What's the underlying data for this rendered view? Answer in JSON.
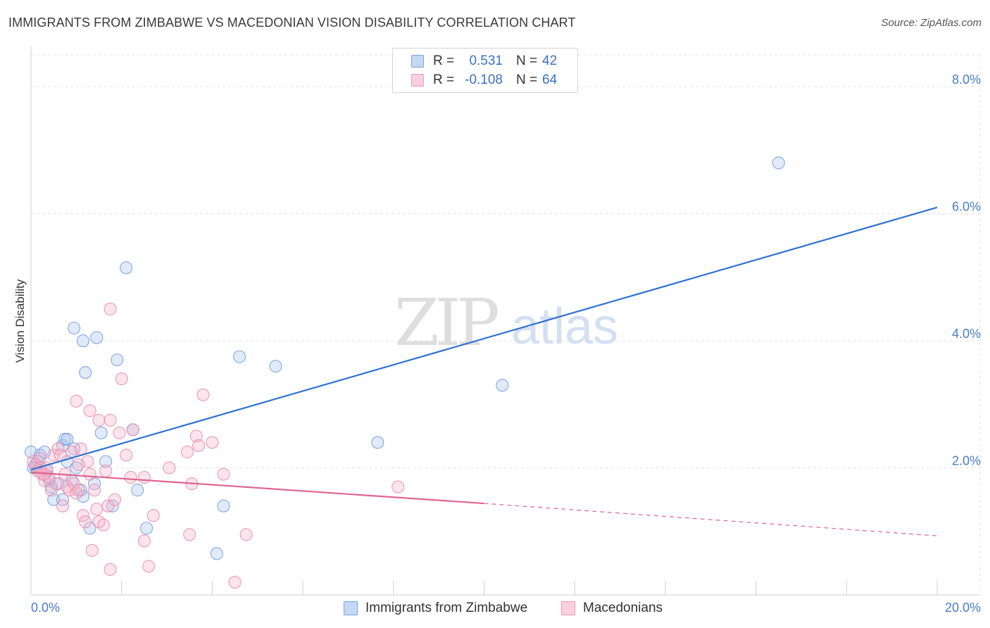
{
  "header": {
    "title": "IMMIGRANTS FROM ZIMBABWE VS MACEDONIAN VISION DISABILITY CORRELATION CHART",
    "source": "Source: ZipAtlas.com"
  },
  "watermark": {
    "zip": "ZIP",
    "atlas": "atlas"
  },
  "legend": {
    "rows": [
      {
        "r_label": "R =",
        "r_value": "0.531",
        "n_label": "N =",
        "n_value": "42",
        "color": "#a8c4ee"
      },
      {
        "r_label": "R =",
        "r_value": "-0.108",
        "n_label": "N =",
        "n_value": "64",
        "color": "#f6b3c8"
      }
    ]
  },
  "chart_data": {
    "type": "scatter",
    "title": "IMMIGRANTS FROM ZIMBABWE VS MACEDONIAN VISION DISABILITY CORRELATION CHART",
    "xlabel": "",
    "ylabel": "Vision Disability",
    "xlim": [
      0,
      20
    ],
    "ylim": [
      0,
      8.5
    ],
    "x_tick_labels": [
      "0.0%",
      "20.0%"
    ],
    "y_ticks": [
      2,
      4,
      6,
      8
    ],
    "y_tick_labels": [
      "2.0%",
      "4.0%",
      "6.0%",
      "8.0%"
    ],
    "grid": true,
    "legend_position": "top-center",
    "colors": {
      "zimbabwe": "#4a86d8",
      "macedonians": "#e8709a"
    },
    "series": [
      {
        "name": "Immigrants from Zimbabwe",
        "color": "#4a86d8",
        "points": [
          [
            0.0,
            2.25
          ],
          [
            0.1,
            2.0
          ],
          [
            0.15,
            2.1
          ],
          [
            0.2,
            2.2
          ],
          [
            0.3,
            2.25
          ],
          [
            0.35,
            1.95
          ],
          [
            0.4,
            1.8
          ],
          [
            0.45,
            1.7
          ],
          [
            0.5,
            1.5
          ],
          [
            0.6,
            1.75
          ],
          [
            0.7,
            1.5
          ],
          [
            0.7,
            2.35
          ],
          [
            0.75,
            2.45
          ],
          [
            0.8,
            2.1
          ],
          [
            0.8,
            2.45
          ],
          [
            0.9,
            1.8
          ],
          [
            0.95,
            2.3
          ],
          [
            0.95,
            4.2
          ],
          [
            1.0,
            2.0
          ],
          [
            1.1,
            1.65
          ],
          [
            1.15,
            1.55
          ],
          [
            1.15,
            4.0
          ],
          [
            1.2,
            3.5
          ],
          [
            1.3,
            1.05
          ],
          [
            1.4,
            1.75
          ],
          [
            1.45,
            4.05
          ],
          [
            1.55,
            2.55
          ],
          [
            1.65,
            2.1
          ],
          [
            1.8,
            1.4
          ],
          [
            1.9,
            3.7
          ],
          [
            2.1,
            5.15
          ],
          [
            2.25,
            2.6
          ],
          [
            2.35,
            1.65
          ],
          [
            2.55,
            1.05
          ],
          [
            4.1,
            0.65
          ],
          [
            4.25,
            1.4
          ],
          [
            4.6,
            3.75
          ],
          [
            5.4,
            3.6
          ],
          [
            7.65,
            2.4
          ],
          [
            10.4,
            3.3
          ],
          [
            16.5,
            6.8
          ],
          [
            0.05,
            2.0
          ]
        ]
      },
      {
        "name": "Macedonians",
        "color": "#e8709a",
        "points": [
          [
            0.05,
            2.1
          ],
          [
            0.1,
            2.05
          ],
          [
            0.15,
            1.95
          ],
          [
            0.2,
            2.15
          ],
          [
            0.25,
            1.9
          ],
          [
            0.3,
            1.8
          ],
          [
            0.35,
            2.0
          ],
          [
            0.4,
            1.85
          ],
          [
            0.45,
            1.65
          ],
          [
            0.5,
            2.2
          ],
          [
            0.55,
            1.75
          ],
          [
            0.6,
            2.3
          ],
          [
            0.65,
            2.2
          ],
          [
            0.7,
            1.4
          ],
          [
            0.75,
            1.9
          ],
          [
            0.8,
            1.7
          ],
          [
            0.85,
            1.65
          ],
          [
            0.9,
            2.25
          ],
          [
            0.95,
            1.75
          ],
          [
            1.0,
            1.6
          ],
          [
            1.0,
            3.05
          ],
          [
            1.05,
            1.65
          ],
          [
            1.1,
            2.3
          ],
          [
            1.15,
            1.25
          ],
          [
            1.2,
            1.15
          ],
          [
            1.25,
            2.1
          ],
          [
            1.3,
            1.9
          ],
          [
            1.3,
            2.9
          ],
          [
            1.35,
            0.7
          ],
          [
            1.4,
            1.65
          ],
          [
            1.45,
            1.35
          ],
          [
            1.5,
            1.15
          ],
          [
            1.5,
            2.75
          ],
          [
            1.6,
            1.1
          ],
          [
            1.65,
            1.95
          ],
          [
            1.7,
            1.4
          ],
          [
            1.75,
            2.75
          ],
          [
            1.75,
            4.5
          ],
          [
            1.75,
            0.4
          ],
          [
            1.85,
            1.5
          ],
          [
            1.95,
            2.55
          ],
          [
            2.0,
            3.4
          ],
          [
            2.1,
            2.2
          ],
          [
            2.2,
            1.85
          ],
          [
            2.25,
            2.6
          ],
          [
            2.5,
            1.85
          ],
          [
            2.5,
            0.85
          ],
          [
            2.6,
            0.45
          ],
          [
            2.7,
            1.25
          ],
          [
            3.05,
            2.0
          ],
          [
            3.45,
            2.25
          ],
          [
            3.5,
            0.95
          ],
          [
            3.55,
            1.75
          ],
          [
            3.65,
            2.5
          ],
          [
            3.7,
            2.35
          ],
          [
            3.8,
            3.15
          ],
          [
            4.0,
            2.4
          ],
          [
            4.25,
            1.9
          ],
          [
            4.5,
            0.2
          ],
          [
            4.75,
            0.95
          ],
          [
            8.1,
            1.7
          ],
          [
            1.05,
            2.05
          ],
          [
            0.3,
            1.9
          ],
          [
            0.2,
            2.0
          ]
        ]
      }
    ],
    "trendlines": [
      {
        "series": "Immigrants from Zimbabwe",
        "from": [
          0,
          1.97
        ],
        "to": [
          20,
          6.1
        ],
        "style": "solid"
      },
      {
        "series": "Macedonians",
        "from": [
          0,
          1.93
        ],
        "to": [
          10,
          1.44
        ],
        "style": "solid"
      },
      {
        "series": "Macedonians",
        "from": [
          10,
          1.44
        ],
        "to": [
          20,
          0.93
        ],
        "style": "dashed"
      }
    ]
  },
  "bottom_legend": {
    "items": [
      {
        "label": "Immigrants from Zimbabwe",
        "color": "#a8c4ee"
      },
      {
        "label": "Macedonians",
        "color": "#f6b3c8"
      }
    ]
  }
}
